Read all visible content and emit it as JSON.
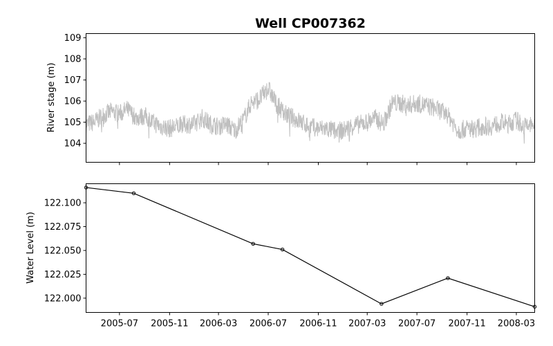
{
  "chart_data": [
    {
      "type": "line",
      "title": "Well CP007362",
      "xlabel": "",
      "ylabel": "River stage (m)",
      "xlim": [
        "2005-04-10",
        "2008-04-15"
      ],
      "ylim": [
        103.1,
        109.2
      ],
      "yticks": [
        104,
        105,
        106,
        107,
        108,
        109
      ],
      "grid": false,
      "series": [
        {
          "color": "#bfbfbf",
          "x": [
            "2005-04-10",
            "2005-05-01",
            "2005-05-20",
            "2005-06-10",
            "2005-07-01",
            "2005-07-20",
            "2005-08-10",
            "2005-09-01",
            "2005-09-20",
            "2005-10-10",
            "2005-11-01",
            "2005-11-20",
            "2005-12-10",
            "2006-01-01",
            "2006-01-20",
            "2006-02-10",
            "2006-03-01",
            "2006-03-20",
            "2006-04-10",
            "2006-05-01",
            "2006-05-20",
            "2006-06-10",
            "2006-07-01",
            "2006-07-20",
            "2006-08-10",
            "2006-09-01",
            "2006-09-20",
            "2006-10-10",
            "2006-11-01",
            "2006-11-20",
            "2006-12-10",
            "2007-01-01",
            "2007-01-20",
            "2007-02-10",
            "2007-03-01",
            "2007-03-20",
            "2007-04-10",
            "2007-05-01",
            "2007-05-20",
            "2007-06-10",
            "2007-07-01",
            "2007-07-20",
            "2007-08-10",
            "2007-09-01",
            "2007-09-20",
            "2007-10-10",
            "2007-11-01",
            "2007-11-20",
            "2007-12-10",
            "2008-01-01",
            "2008-01-20",
            "2008-02-10",
            "2008-03-01",
            "2008-03-20",
            "2008-04-15"
          ],
          "y": [
            104.9,
            105.0,
            105.3,
            105.5,
            105.4,
            105.6,
            105.2,
            105.3,
            105.0,
            104.8,
            104.7,
            104.8,
            104.9,
            104.9,
            105.2,
            104.9,
            104.8,
            104.9,
            104.6,
            105.1,
            105.9,
            106.1,
            106.6,
            105.9,
            105.4,
            105.2,
            105.0,
            104.8,
            104.7,
            104.7,
            104.6,
            104.6,
            104.8,
            104.9,
            105.0,
            105.2,
            104.9,
            105.9,
            105.9,
            105.8,
            105.9,
            105.8,
            105.7,
            105.5,
            105.2,
            104.6,
            104.7,
            104.7,
            104.8,
            104.8,
            105.0,
            104.9,
            105.1,
            104.8,
            104.9
          ]
        }
      ]
    },
    {
      "type": "line",
      "title": "",
      "xlabel": "",
      "ylabel": "Water Level (m)",
      "xlim": [
        "2005-04-10",
        "2008-04-15"
      ],
      "ylim": [
        121.985,
        122.12
      ],
      "yticks": [
        "122.000",
        "122.025",
        "122.050",
        "122.075",
        "122.100"
      ],
      "xticks": [
        "2005-07",
        "2005-11",
        "2006-03",
        "2006-07",
        "2006-11",
        "2007-03",
        "2007-07",
        "2007-11",
        "2008-03"
      ],
      "grid": false,
      "series": [
        {
          "color": "#000000",
          "marker": "circle",
          "x": [
            "2005-04-10",
            "2005-08-05",
            "2006-05-25",
            "2006-08-05",
            "2007-04-05",
            "2007-09-15",
            "2008-04-15"
          ],
          "y": [
            122.116,
            122.11,
            122.057,
            122.051,
            121.994,
            122.021,
            121.991
          ]
        }
      ]
    }
  ]
}
